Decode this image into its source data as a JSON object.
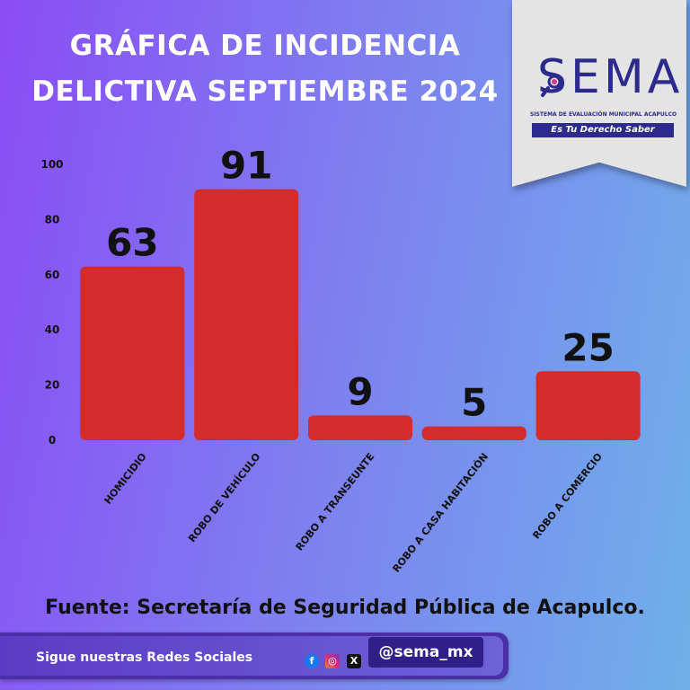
{
  "title_line1": "GRÁFICA DE INCIDENCIA",
  "title_line2": "DELICTIVA SEPTIEMBRE 2024",
  "logo": {
    "name": "SEMA",
    "subtitle": "SISTEMA DE EVALUACIÓN MUNICIPAL ACAPULCO",
    "slogan": "Es Tu Derecho Saber"
  },
  "chart_data": {
    "type": "bar",
    "categories": [
      "HOMICIDIO",
      "ROBO DE VEHÍCULO",
      "ROBO A TRANSEUNTE",
      "ROBO A CASA HABITACIÓN",
      "ROBO A COMERCIO"
    ],
    "values": [
      63,
      91,
      9,
      5,
      25
    ],
    "y_ticks": [
      0,
      20,
      40,
      60,
      80,
      100
    ],
    "ylim": [
      0,
      100
    ],
    "bar_color": "#d42b2b",
    "grid": false
  },
  "source": "Fuente: Secretaría de Seguridad Pública de Acapulco.",
  "footer": {
    "follow_text": "Sigue nuestras Redes Sociales",
    "handle": "@sema_mx",
    "icons": [
      "facebook-icon",
      "instagram-icon",
      "x-icon"
    ]
  }
}
